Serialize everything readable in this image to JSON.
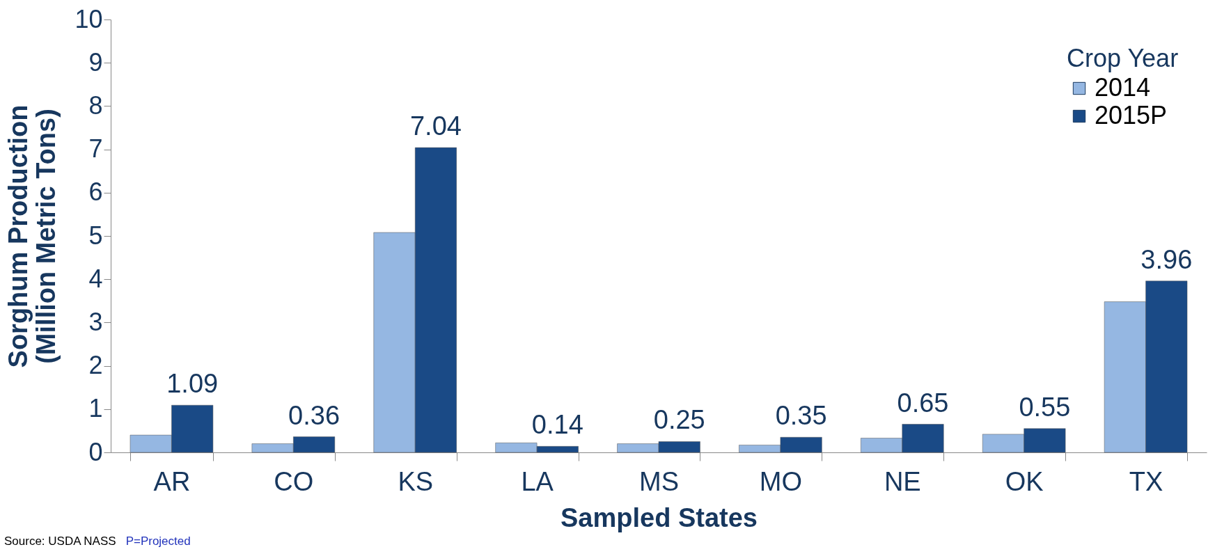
{
  "chart_data": {
    "type": "bar",
    "xlabel": "Sampled States",
    "ylabel": "Sorghum Production\n(Million Metric Tons)",
    "legend_title": "Crop Year",
    "categories": [
      "AR",
      "CO",
      "KS",
      "LA",
      "MS",
      "MO",
      "NE",
      "OK",
      "TX"
    ],
    "series": [
      {
        "name": "2014",
        "color": "#95b7e2",
        "values": [
          0.4,
          0.2,
          5.08,
          0.22,
          0.2,
          0.17,
          0.33,
          0.42,
          3.48
        ]
      },
      {
        "name": "2015P",
        "color": "#1a4a86",
        "values": [
          1.09,
          0.36,
          7.04,
          0.14,
          0.25,
          0.35,
          0.65,
          0.55,
          3.96
        ],
        "value_labels": [
          "1.09",
          "0.36",
          "7.04",
          "0.14",
          "0.25",
          "0.35",
          "0.65",
          "0.55",
          "3.96"
        ]
      }
    ],
    "ylim": [
      0,
      10
    ],
    "yticks": [
      0,
      1,
      2,
      3,
      4,
      5,
      6,
      7,
      8,
      9,
      10
    ],
    "legend": "top right",
    "annotations": [
      "Source: USDA NASS",
      "P=Projected"
    ]
  }
}
